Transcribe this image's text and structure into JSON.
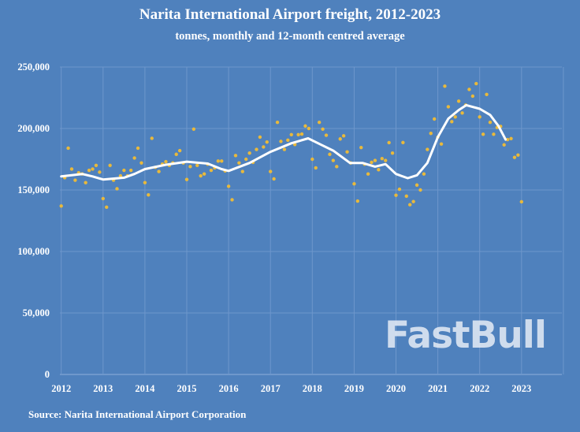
{
  "chart_data": {
    "type": "scatter",
    "title": "Narita International Airport freight, 2012-2023",
    "subtitle": "tonnes, monthly and 12-month centred average",
    "source": "Source: Narita International Airport Corporation",
    "xlim": [
      2012,
      2024
    ],
    "ylim": [
      0,
      250000
    ],
    "x_ticks": [
      "2012",
      "2013",
      "2014",
      "2015",
      "2016",
      "2017",
      "2018",
      "2019",
      "2020",
      "2021",
      "2022",
      "2023"
    ],
    "y_ticks": [
      "0",
      "50,000",
      "100,000",
      "150,000",
      "200,000",
      "250,000"
    ],
    "grid": true,
    "colors": {
      "background": "#4f81bd",
      "monthly": "#e8b93c",
      "average": "#ffffff",
      "grid": "#6e97cc"
    },
    "monthly_start": "2012-01",
    "series": [
      {
        "type": "scatter",
        "values": [
          137000,
          160000,
          184000,
          167000,
          158000,
          164000,
          163000,
          156000,
          166000,
          167000,
          170000,
          164500,
          143000,
          136000,
          170000,
          158000,
          151000,
          161500,
          166000,
          161500,
          166000,
          176000,
          184000,
          172000,
          156000,
          146000,
          192000,
          168500,
          165000,
          171000,
          173000,
          170000,
          172000,
          179000,
          182000,
          172000,
          158500,
          169000,
          199500,
          170000,
          161500,
          163000,
          171000,
          166000,
          168000,
          173500,
          173500,
          165500,
          153000,
          142000,
          178000,
          172000,
          165000,
          175000,
          180000,
          172500,
          183000,
          193000,
          185000,
          189000,
          165000,
          159000,
          205000,
          189500,
          183000,
          190500,
          195000,
          187000,
          195000,
          195500,
          202000,
          200000,
          175000,
          168000,
          205000,
          199500,
          194500,
          179000,
          174000,
          169000,
          191500,
          194000,
          181000,
          172000,
          155000,
          141000,
          184500,
          171000,
          163000,
          172500,
          174000,
          166500,
          175500,
          174000,
          188500,
          180000,
          145700,
          150600,
          188600,
          145000,
          138000,
          140600,
          154000,
          150000,
          163000,
          183000,
          196000,
          207700,
          193000,
          187400,
          234400,
          217700,
          205600,
          209400,
          222200,
          212600,
          219000,
          231800,
          226300,
          236500,
          209400,
          195300,
          227700,
          205000,
          195300,
          200800,
          201700,
          186700,
          191000,
          191800,
          176500,
          178400,
          140400
        ]
      },
      {
        "type": "line",
        "x": [
          2012.0,
          2012.5,
          2012.75,
          2013.0,
          2013.5,
          2013.75,
          2014.0,
          2014.5,
          2015.0,
          2015.5,
          2015.83,
          2016.0,
          2016.5,
          2017.0,
          2017.5,
          2017.9,
          2018.2,
          2018.5,
          2018.9,
          2019.2,
          2019.5,
          2019.75,
          2020.0,
          2020.28,
          2020.5,
          2020.75,
          2021.0,
          2021.25,
          2021.5,
          2021.68,
          2022.0,
          2022.25,
          2022.45,
          2022.62
        ],
        "values": [
          161000,
          163000,
          161000,
          158500,
          160000,
          163000,
          167000,
          170500,
          173000,
          171500,
          167000,
          165500,
          172000,
          181000,
          188000,
          192000,
          187000,
          182000,
          172000,
          172000,
          169000,
          171000,
          163000,
          159600,
          162000,
          172000,
          193000,
          208000,
          215000,
          219000,
          216000,
          211000,
          202000,
          191000
        ]
      }
    ]
  },
  "watermark": "FastBull"
}
